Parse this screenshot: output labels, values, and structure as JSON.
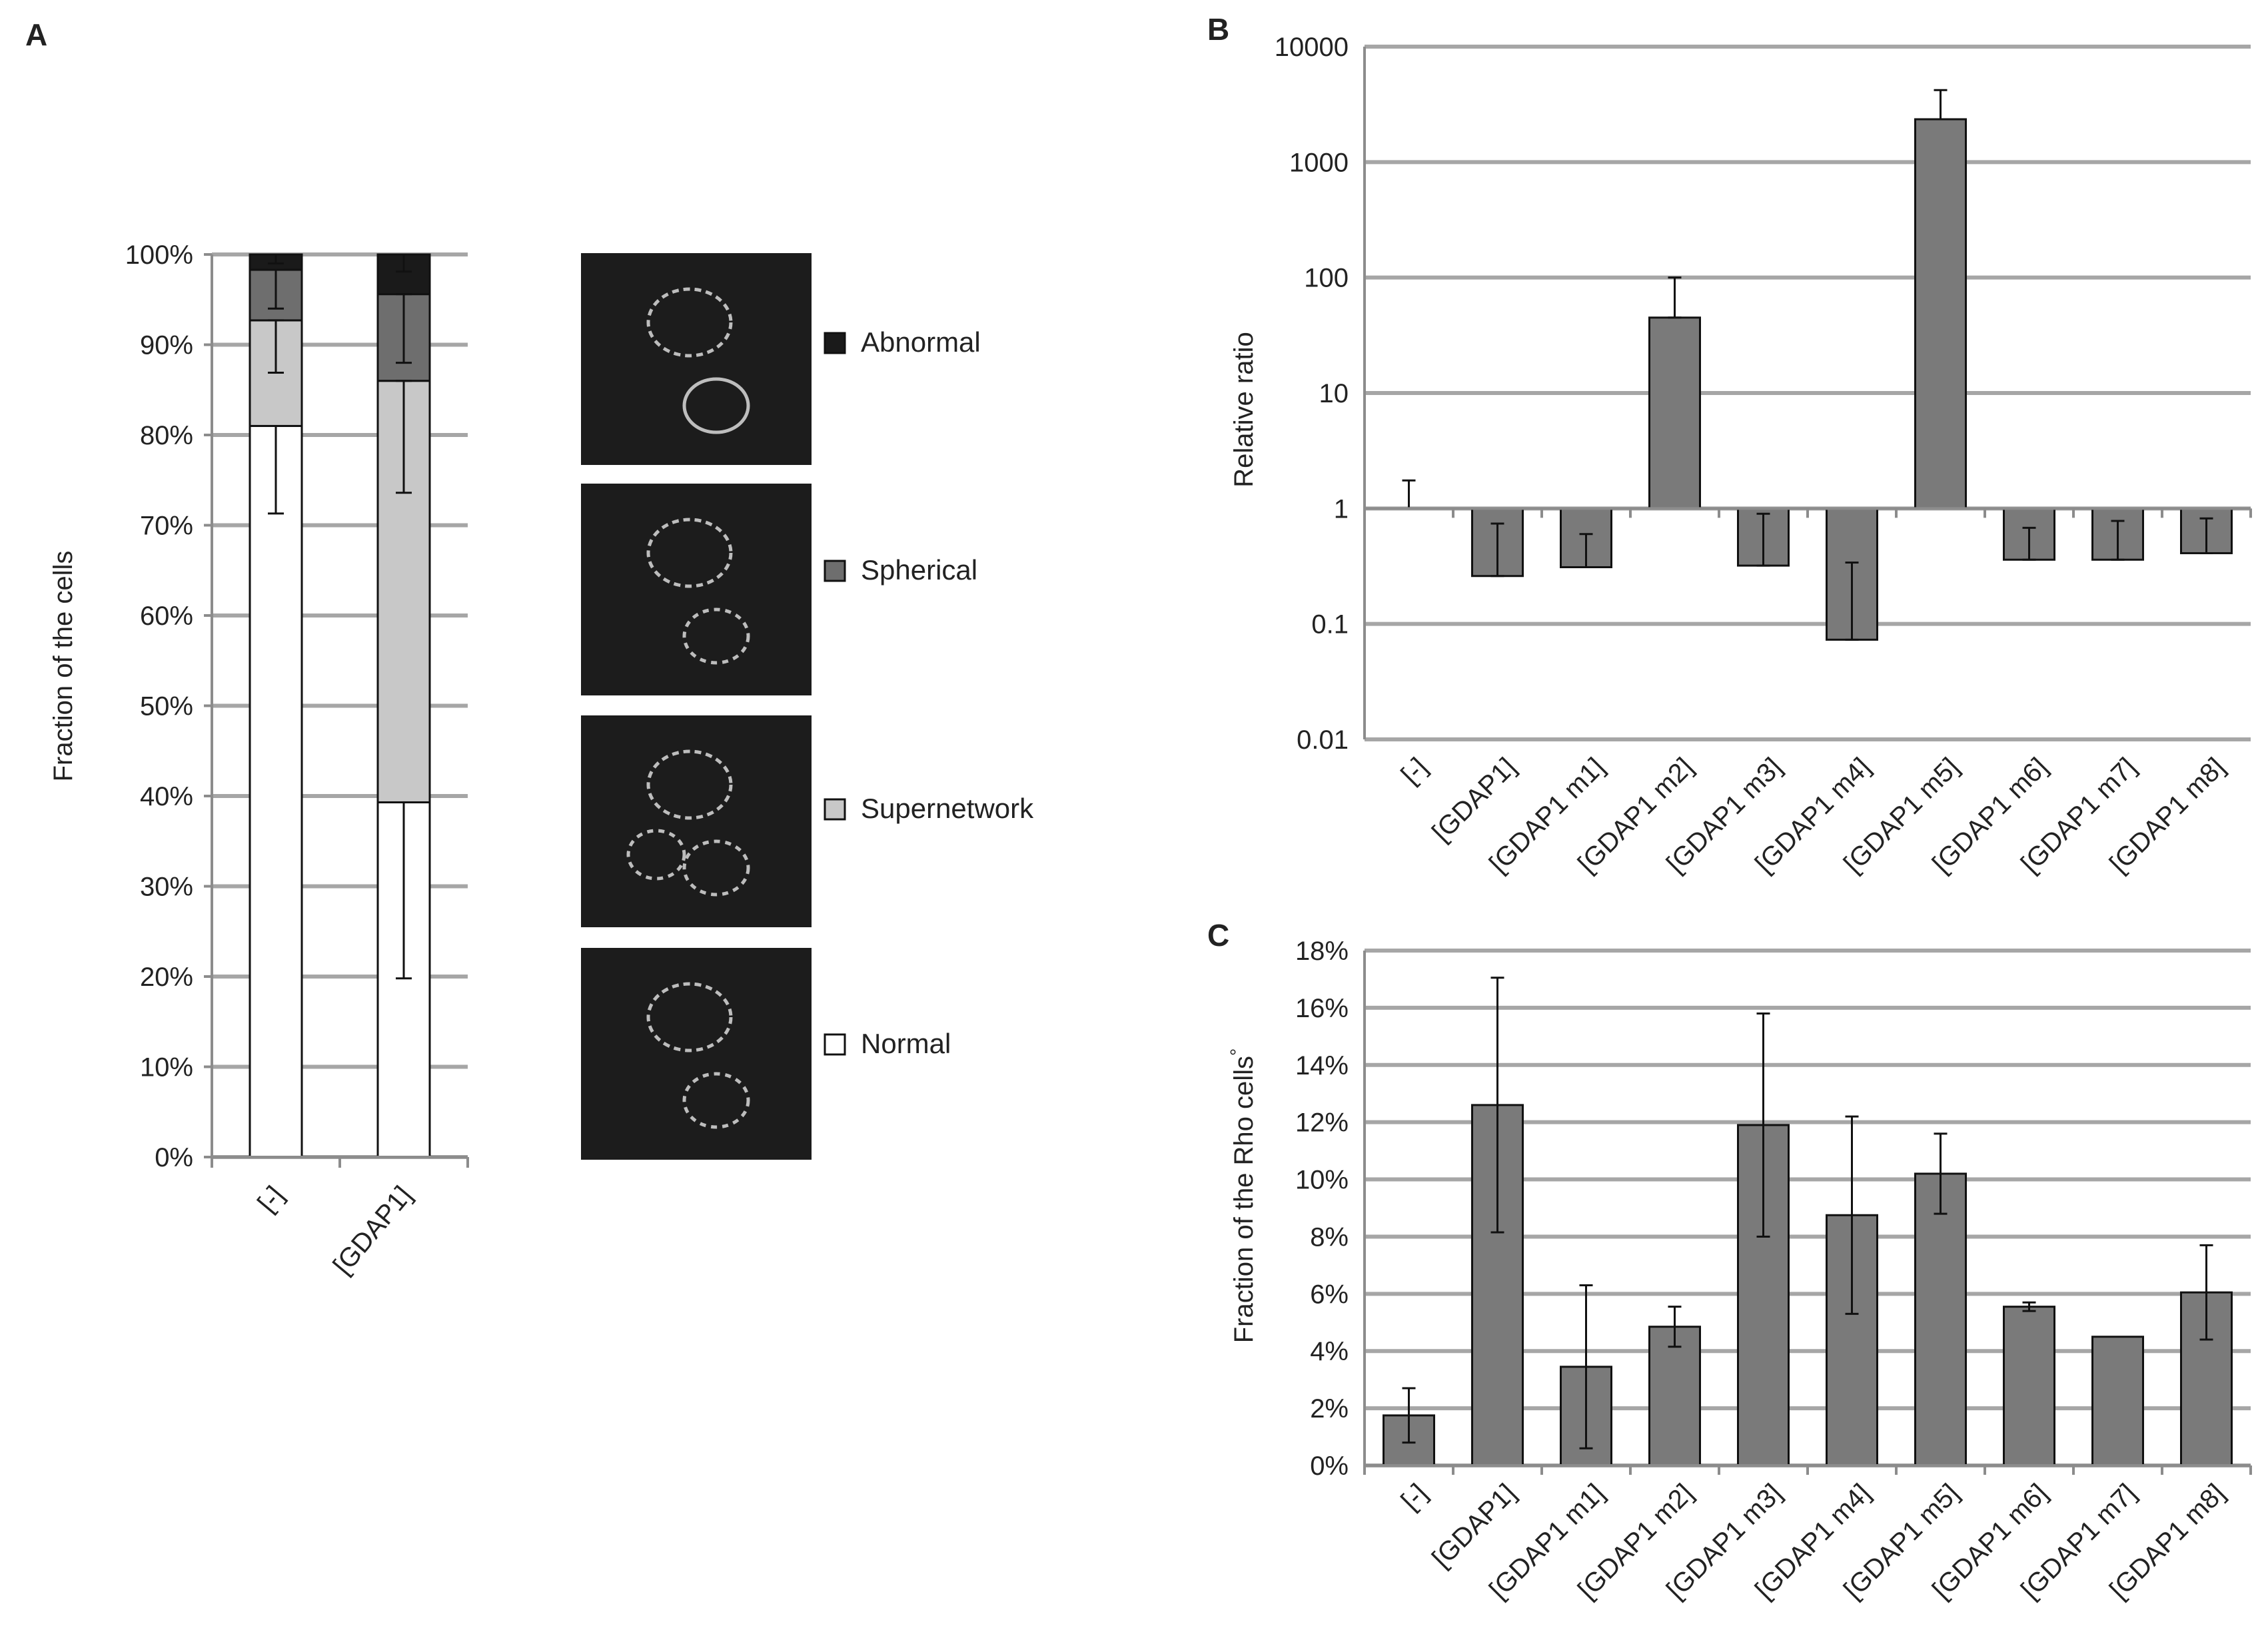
{
  "panels": {
    "a": "A",
    "b": "B",
    "c": "C"
  },
  "colors": {
    "normal": "#ffffff",
    "supernetwork": "#c8c8c8",
    "spherical": "#6e6e6e",
    "abnormal": "#1a1a1a",
    "bar": "#7a7a7a",
    "grid": "#a6a6a6",
    "axis": "#8c8c8c",
    "micro_bg": "#1c1c1c"
  },
  "chart_data": [
    {
      "id": "A",
      "type": "bar",
      "stacked": true,
      "ylabel": "Fraction of the cells",
      "categories": [
        "[-]",
        "[GDAP1]"
      ],
      "ylim": [
        0,
        100
      ],
      "ticks": [
        "0%",
        "10%",
        "20%",
        "30%",
        "40%",
        "50%",
        "60%",
        "70%",
        "80%",
        "90%",
        "100%"
      ],
      "series": [
        {
          "name": "Normal",
          "key": "normal",
          "values": [
            81.0,
            39.3
          ],
          "err_low": [
            71.3,
            19.8
          ],
          "err_high": [
            81.0,
            39.3
          ]
        },
        {
          "name": "Supernetwork",
          "key": "supernetwork",
          "values": [
            11.7,
            46.7
          ],
          "err_low": [
            86.9,
            73.6
          ],
          "err_high": [
            92.7,
            86.0
          ]
        },
        {
          "name": "Spherical",
          "key": "spherical",
          "values": [
            5.6,
            9.6
          ],
          "err_low": [
            94.0,
            88.0
          ],
          "err_high": [
            98.3,
            95.6
          ]
        },
        {
          "name": "Abnormal",
          "key": "abnormal",
          "values": [
            1.7,
            4.4
          ],
          "err_low": [
            99.0,
            98.1
          ],
          "err_high": [
            100.0,
            100.0
          ]
        }
      ],
      "legend": [
        "Abnormal",
        "Spherical",
        "Supernetwork",
        "Normal"
      ]
    },
    {
      "id": "B",
      "type": "bar",
      "scale": "log",
      "baseline": 1,
      "ylabel": "Relative ratio",
      "ylim": [
        0.01,
        10000
      ],
      "ticks": [
        "0.01",
        "0.1",
        "1",
        "10",
        "100",
        "1000",
        "10000"
      ],
      "categories": [
        "[-]",
        "[GDAP1]",
        "[GDAP1 m1]",
        "[GDAP1 m2]",
        "[GDAP1 m3]",
        "[GDAP1 m4]",
        "[GDAP1 m5]",
        "[GDAP1 m6]",
        "[GDAP1 m7]",
        "[GDAP1 m8]"
      ],
      "values": [
        1,
        0.26,
        0.31,
        45,
        0.32,
        0.073,
        2350,
        0.36,
        0.36,
        0.41
      ],
      "err_high": [
        1.75,
        0.74,
        0.6,
        100,
        0.9,
        0.34,
        4200,
        0.68,
        0.78,
        0.82
      ]
    },
    {
      "id": "C",
      "type": "bar",
      "ylabel": "Fraction of the Rho cells",
      "ylabel_sup": "°",
      "ylim": [
        0,
        18
      ],
      "ticks": [
        "0%",
        "2%",
        "4%",
        "6%",
        "8%",
        "10%",
        "12%",
        "14%",
        "16%",
        "18%"
      ],
      "categories": [
        "[-]",
        "[GDAP1]",
        "[GDAP1 m1]",
        "[GDAP1 m2]",
        "[GDAP1 m3]",
        "[GDAP1 m4]",
        "[GDAP1 m5]",
        "[GDAP1 m6]",
        "[GDAP1 m7]",
        "[GDAP1 m8]"
      ],
      "values": [
        1.75,
        12.6,
        3.45,
        4.85,
        11.9,
        8.75,
        10.2,
        5.55,
        4.5,
        6.05
      ],
      "err": [
        0.95,
        4.45,
        2.85,
        0.7,
        3.9,
        3.45,
        1.4,
        0.15,
        0,
        1.65
      ]
    }
  ],
  "micrographs": [
    {
      "name": "Abnormal"
    },
    {
      "name": "Spherical"
    },
    {
      "name": "Supernetwork"
    },
    {
      "name": "Normal"
    }
  ]
}
